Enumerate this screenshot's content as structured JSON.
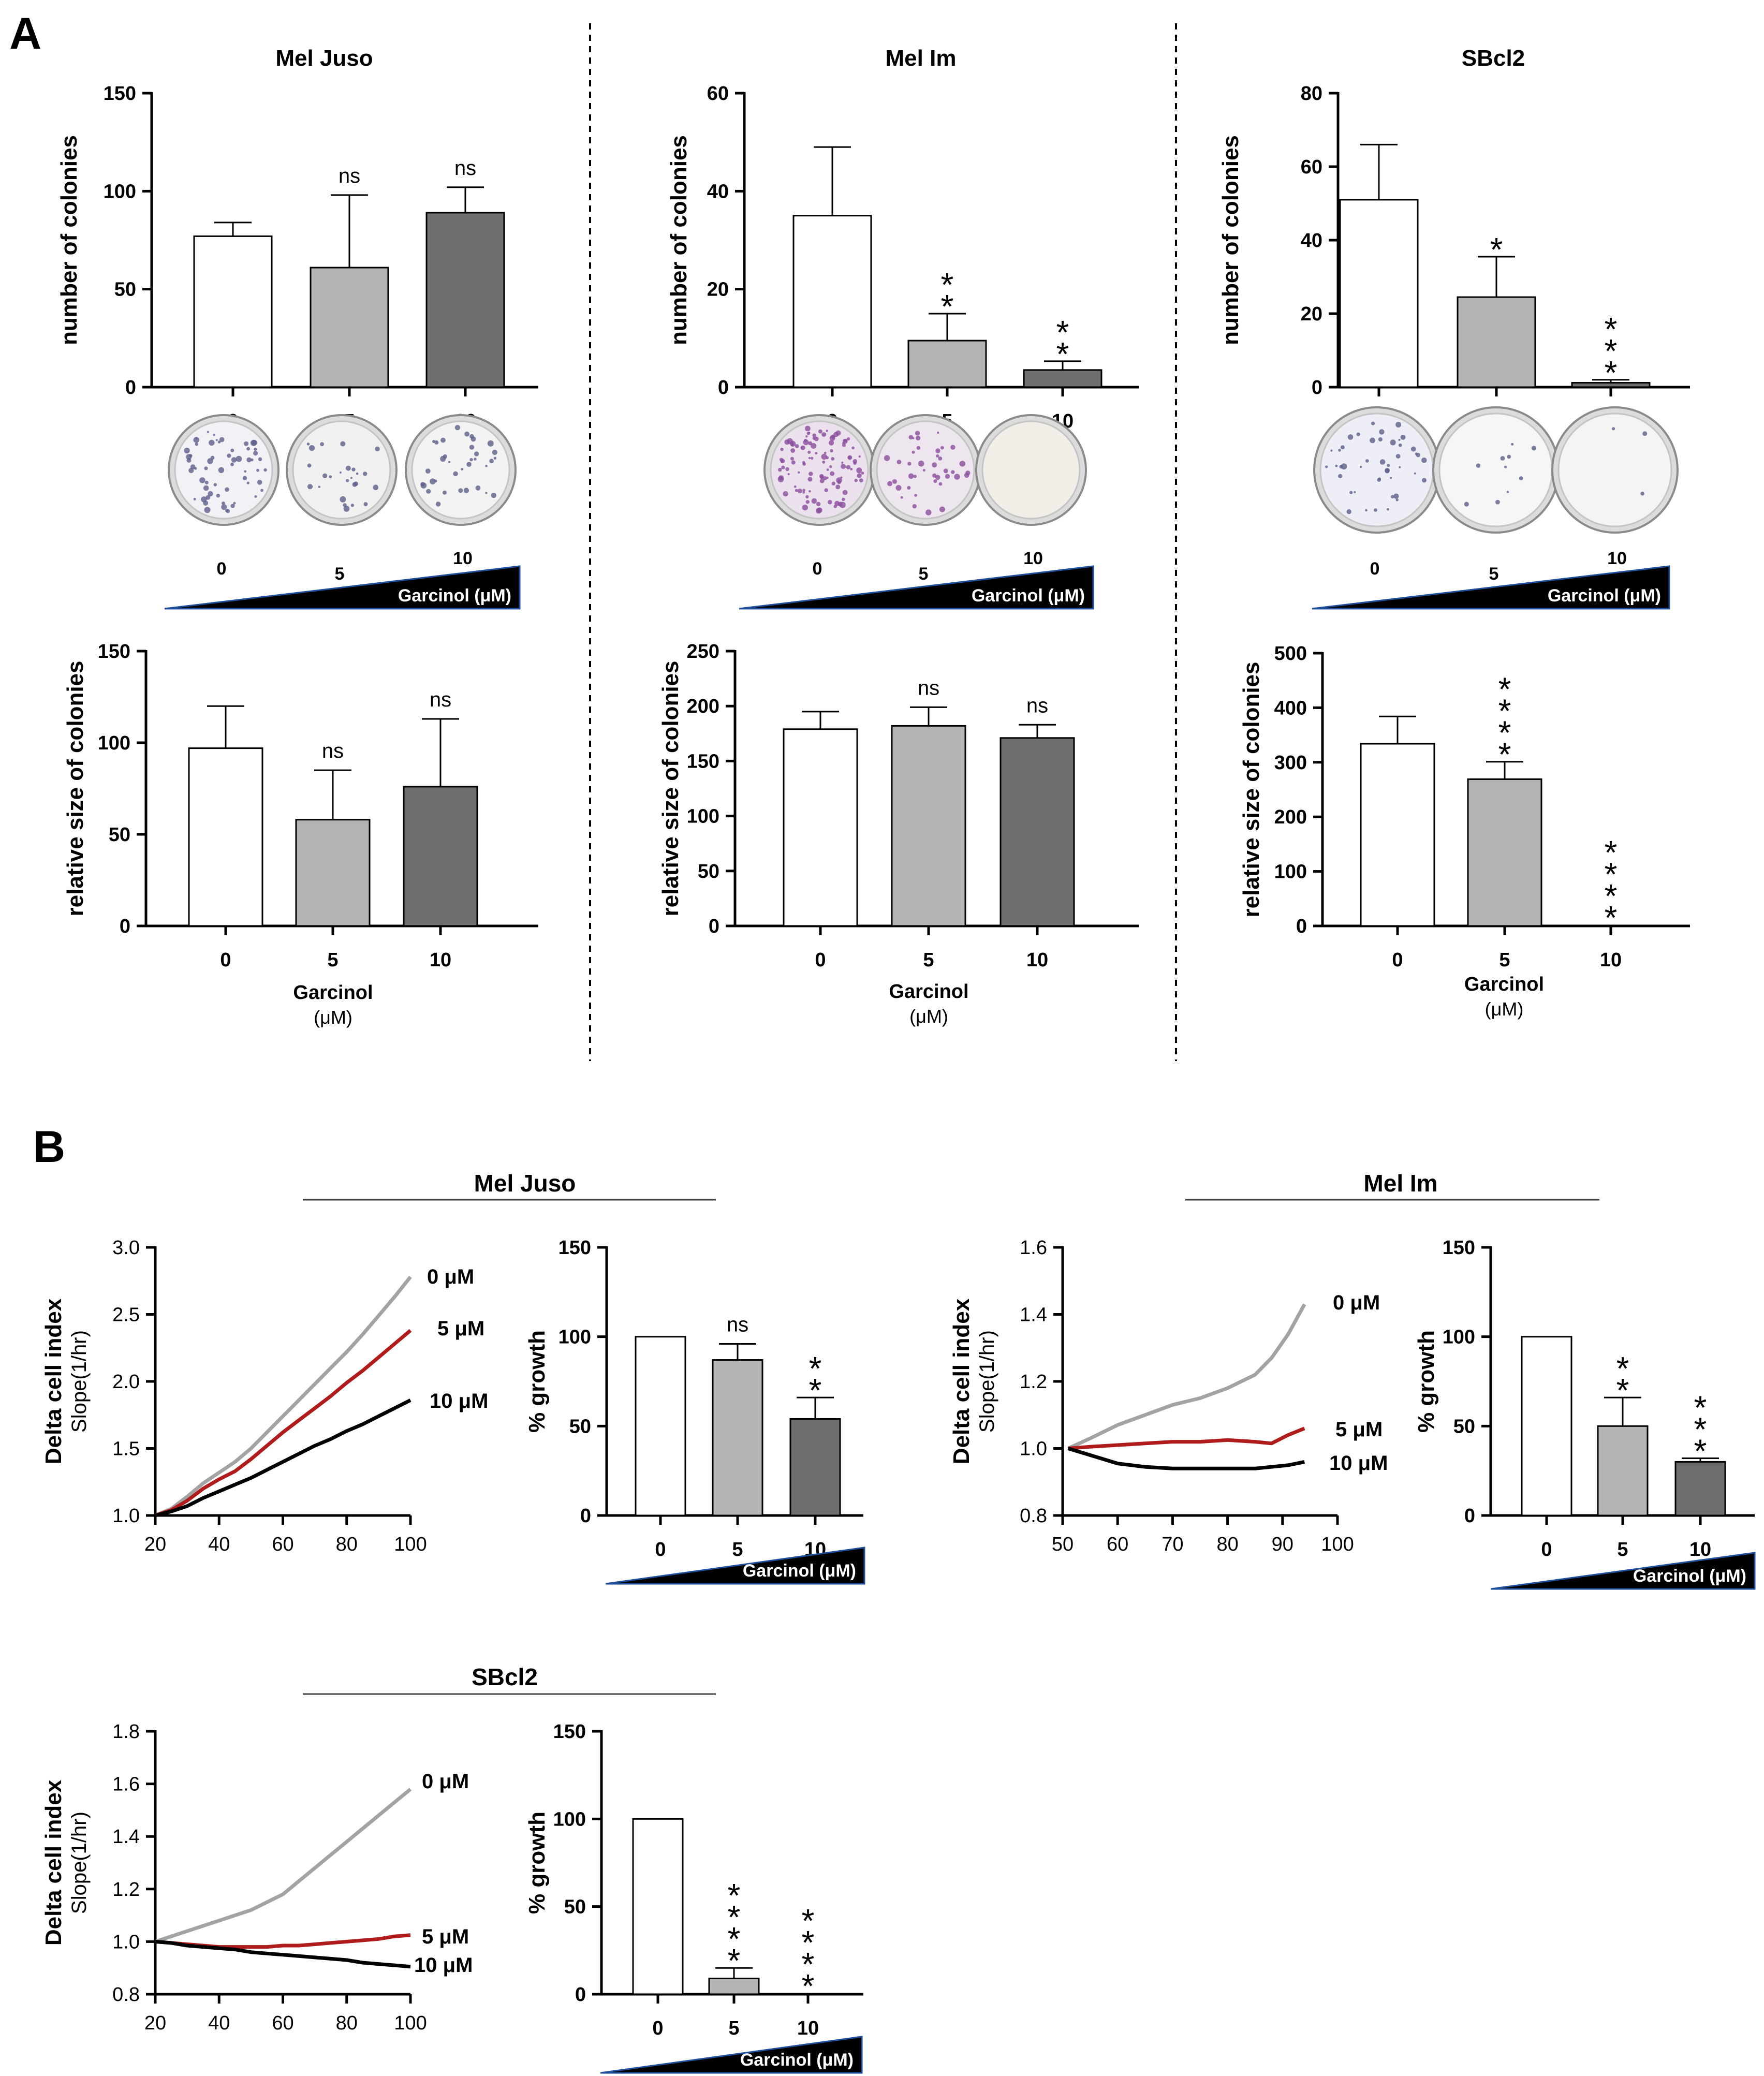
{
  "panel_labels": {
    "A": "A",
    "B": "B"
  },
  "colors": {
    "white": "#ffffff",
    "light": "#b4b4b4",
    "dark": "#6e6e6e",
    "gray_line": "#a3a3a3",
    "red_line": "#b01c1c",
    "black_line": "#000000",
    "wedge": "#000000",
    "wedge_edge": "#1f4e9a"
  },
  "dishes_A": [
    {
      "name": "mel-juso-dishes",
      "labels": [
        "0",
        "5",
        "10"
      ],
      "wedge_label": "Garcinol (μM)",
      "colony_density": [
        60,
        25,
        35
      ],
      "tint": [
        "#f2f1f6",
        "#f1f1f1",
        "#f3f3f3"
      ]
    },
    {
      "name": "mel-im-dishes",
      "labels": [
        "0",
        "5",
        "10"
      ],
      "wedge_label": "Garcinol (μM)",
      "colony_density": [
        110,
        40,
        0
      ],
      "tint": [
        "#ece2ee",
        "#eee6ee",
        "#f3efe8"
      ]
    },
    {
      "name": "sbcl2-dishes",
      "labels": [
        "0",
        "5",
        "10"
      ],
      "wedge_label": "Garcinol (μM)",
      "colony_density": [
        45,
        10,
        3
      ],
      "tint": [
        "#eeeef6",
        "#f6f6f6",
        "#f4f4f4"
      ]
    }
  ],
  "wedges_B": [
    {
      "name": "mel-juso-growth-wedge",
      "label": "Garcinol (μM)"
    },
    {
      "name": "mel-im-growth-wedge",
      "label": "Garcinol (μM)"
    },
    {
      "name": "sbcl2-growth-wedge",
      "label": "Garcinol (μM)"
    }
  ],
  "chart_data": [
    {
      "id": "a1",
      "type": "bar",
      "title": "Mel Juso",
      "ylabel": "number of colonies",
      "categories": [
        "0",
        "5",
        "10"
      ],
      "values": [
        77,
        61,
        89
      ],
      "errors": [
        7,
        37,
        13
      ],
      "significance": [
        "",
        "ns",
        "ns"
      ],
      "ylim": [
        0,
        150
      ],
      "yticks": [
        0,
        50,
        100,
        150
      ]
    },
    {
      "id": "a2",
      "type": "bar",
      "title": "Mel Im",
      "ylabel": "number of colonies",
      "categories": [
        "0",
        "5",
        "10"
      ],
      "values": [
        35,
        9.5,
        3.5
      ],
      "errors": [
        14,
        5.5,
        1.8
      ],
      "significance": [
        "",
        "**",
        "**"
      ],
      "ylim": [
        0,
        60
      ],
      "yticks": [
        0,
        20,
        40,
        60
      ]
    },
    {
      "id": "a3",
      "type": "bar",
      "title": "SBcl2",
      "ylabel": "number of colonies",
      "categories": [
        "0",
        "5",
        "10"
      ],
      "values": [
        51,
        24.5,
        1.2
      ],
      "errors": [
        15,
        11,
        0.8
      ],
      "significance": [
        "",
        "*",
        "***"
      ],
      "ylim": [
        0,
        80
      ],
      "yticks": [
        0,
        20,
        40,
        60,
        80
      ]
    },
    {
      "id": "a4",
      "type": "bar",
      "title": "",
      "ylabel": "relative size of colonies",
      "xlabel": "Garcinol",
      "xlabel_unit": "(μM)",
      "categories": [
        "0",
        "5",
        "10"
      ],
      "values": [
        97,
        58,
        76
      ],
      "errors": [
        23,
        27,
        37
      ],
      "significance": [
        "",
        "ns",
        "ns"
      ],
      "ylim": [
        0,
        150
      ],
      "yticks": [
        0,
        50,
        100,
        150
      ]
    },
    {
      "id": "a5",
      "type": "bar",
      "title": "",
      "ylabel": "relative size of colonies",
      "xlabel": "Garcinol",
      "xlabel_unit": "(μM)",
      "categories": [
        "0",
        "5",
        "10"
      ],
      "values": [
        179,
        182,
        171
      ],
      "errors": [
        16,
        17,
        12
      ],
      "significance": [
        "",
        "ns",
        "ns"
      ],
      "ylim": [
        0,
        250
      ],
      "yticks": [
        0,
        50,
        100,
        150,
        200,
        250
      ]
    },
    {
      "id": "a6",
      "type": "bar",
      "title": "",
      "ylabel": "relative size of colonies",
      "xlabel": "Garcinol",
      "xlabel_unit": "(μM)",
      "categories": [
        "0",
        "5",
        "10"
      ],
      "values": [
        334,
        269,
        0
      ],
      "errors": [
        50,
        32,
        0
      ],
      "significance": [
        "",
        "****",
        "****"
      ],
      "ylim": [
        0,
        500
      ],
      "yticks": [
        0,
        100,
        200,
        300,
        400,
        500
      ]
    },
    {
      "id": "b1",
      "type": "line",
      "title": "Mel Juso",
      "ylabel": "Delta cell index",
      "ylabel2": "Slope(1/hr)",
      "xlim": [
        20,
        100
      ],
      "ylim": [
        1.0,
        3.0
      ],
      "xticks": [
        20,
        40,
        60,
        80,
        100
      ],
      "yticks": [
        1.0,
        1.5,
        2.0,
        2.5,
        3.0
      ],
      "ytick_labels": [
        "1.0",
        "1.5",
        "2.0",
        "2.5",
        "3.0"
      ],
      "series": [
        {
          "name": "0 μM",
          "color": "#a3a3a3",
          "x": [
            20,
            25,
            30,
            35,
            40,
            45,
            50,
            55,
            60,
            65,
            70,
            75,
            80,
            85,
            90,
            95,
            100
          ],
          "y": [
            1.0,
            1.05,
            1.14,
            1.24,
            1.32,
            1.4,
            1.5,
            1.62,
            1.74,
            1.86,
            1.98,
            2.1,
            2.22,
            2.35,
            2.49,
            2.63,
            2.78
          ]
        },
        {
          "name": "5 μM",
          "color": "#b01c1c",
          "x": [
            20,
            25,
            30,
            35,
            40,
            45,
            50,
            55,
            60,
            65,
            70,
            75,
            80,
            85,
            90,
            95,
            100
          ],
          "y": [
            1.0,
            1.04,
            1.11,
            1.2,
            1.27,
            1.33,
            1.42,
            1.52,
            1.62,
            1.71,
            1.8,
            1.89,
            1.99,
            2.08,
            2.18,
            2.28,
            2.38
          ]
        },
        {
          "name": "10 μM",
          "color": "#000000",
          "x": [
            20,
            25,
            30,
            35,
            40,
            45,
            50,
            55,
            60,
            65,
            70,
            75,
            80,
            85,
            90,
            95,
            100
          ],
          "y": [
            1.0,
            1.03,
            1.07,
            1.13,
            1.18,
            1.23,
            1.28,
            1.34,
            1.4,
            1.46,
            1.52,
            1.57,
            1.63,
            1.68,
            1.74,
            1.8,
            1.86
          ]
        }
      ]
    },
    {
      "id": "b2",
      "type": "bar",
      "title": "",
      "ylabel": "% growth",
      "categories": [
        "0",
        "5",
        "10"
      ],
      "values": [
        100,
        87,
        54
      ],
      "errors": [
        0,
        9,
        12
      ],
      "significance": [
        "",
        "ns",
        "**"
      ],
      "ylim": [
        0,
        150
      ],
      "yticks": [
        0,
        50,
        100,
        150
      ]
    },
    {
      "id": "b3",
      "type": "line",
      "title": "Mel Im",
      "ylabel": "Delta cell index",
      "ylabel2": "Slope(1/hr)",
      "xlim": [
        50,
        100
      ],
      "ylim": [
        0.8,
        1.6
      ],
      "xticks": [
        50,
        60,
        70,
        80,
        90,
        100
      ],
      "yticks": [
        0.8,
        1.0,
        1.2,
        1.4,
        1.6
      ],
      "ytick_labels": [
        "0.8",
        "1.0",
        "1.2",
        "1.4",
        "1.6"
      ],
      "series": [
        {
          "name": "0 μM",
          "color": "#a3a3a3",
          "x": [
            51,
            55,
            60,
            65,
            70,
            75,
            80,
            85,
            88,
            91,
            94
          ],
          "y": [
            1.0,
            1.03,
            1.07,
            1.1,
            1.13,
            1.15,
            1.18,
            1.22,
            1.27,
            1.34,
            1.43
          ]
        },
        {
          "name": "5 μM",
          "color": "#b01c1c",
          "x": [
            51,
            55,
            60,
            65,
            70,
            75,
            80,
            85,
            88,
            91,
            94
          ],
          "y": [
            1.0,
            1.005,
            1.01,
            1.015,
            1.02,
            1.02,
            1.025,
            1.02,
            1.015,
            1.04,
            1.06
          ]
        },
        {
          "name": "10 μM",
          "color": "#000000",
          "x": [
            51,
            55,
            60,
            65,
            70,
            75,
            80,
            85,
            88,
            91,
            94
          ],
          "y": [
            1.0,
            0.98,
            0.955,
            0.945,
            0.94,
            0.94,
            0.94,
            0.94,
            0.945,
            0.95,
            0.96
          ]
        }
      ]
    },
    {
      "id": "b4",
      "type": "bar",
      "title": "",
      "ylabel": "% growth",
      "categories": [
        "0",
        "5",
        "10"
      ],
      "values": [
        100,
        50,
        30
      ],
      "errors": [
        0,
        16,
        2
      ],
      "significance": [
        "",
        "**",
        "***"
      ],
      "ylim": [
        0,
        150
      ],
      "yticks": [
        0,
        50,
        100,
        150
      ]
    },
    {
      "id": "b5",
      "type": "line",
      "title": "SBcl2",
      "ylabel": "Delta cell index",
      "ylabel2": "Slope(1/hr)",
      "xlim": [
        20,
        100
      ],
      "ylim": [
        0.8,
        1.8
      ],
      "xticks": [
        20,
        40,
        60,
        80,
        100
      ],
      "yticks": [
        0.8,
        1.0,
        1.2,
        1.4,
        1.6,
        1.8
      ],
      "ytick_labels": [
        "0.8",
        "1.0",
        "1.2",
        "1.4",
        "1.6",
        "1.8"
      ],
      "series": [
        {
          "name": "0 μM",
          "color": "#a3a3a3",
          "x": [
            20,
            25,
            30,
            35,
            40,
            45,
            50,
            55,
            60,
            65,
            70,
            75,
            80,
            85,
            90,
            95,
            100
          ],
          "y": [
            1.0,
            1.02,
            1.04,
            1.06,
            1.08,
            1.1,
            1.12,
            1.15,
            1.18,
            1.23,
            1.28,
            1.33,
            1.38,
            1.43,
            1.48,
            1.53,
            1.58
          ]
        },
        {
          "name": "5 μM",
          "color": "#b01c1c",
          "x": [
            20,
            25,
            30,
            35,
            40,
            45,
            50,
            55,
            60,
            65,
            70,
            75,
            80,
            85,
            90,
            95,
            100
          ],
          "y": [
            1.0,
            0.995,
            0.99,
            0.985,
            0.98,
            0.98,
            0.98,
            0.98,
            0.985,
            0.985,
            0.99,
            0.995,
            1.0,
            1.005,
            1.01,
            1.02,
            1.025
          ]
        },
        {
          "name": "10 μM",
          "color": "#000000",
          "x": [
            20,
            25,
            30,
            35,
            40,
            45,
            50,
            55,
            60,
            65,
            70,
            75,
            80,
            85,
            90,
            95,
            100
          ],
          "y": [
            1.0,
            0.995,
            0.985,
            0.98,
            0.975,
            0.97,
            0.96,
            0.955,
            0.95,
            0.945,
            0.94,
            0.935,
            0.93,
            0.92,
            0.915,
            0.91,
            0.905
          ]
        }
      ]
    },
    {
      "id": "b6",
      "type": "bar",
      "title": "",
      "ylabel": "% growth",
      "categories": [
        "0",
        "5",
        "10"
      ],
      "values": [
        100,
        9,
        0
      ],
      "errors": [
        0,
        6,
        0
      ],
      "significance": [
        "",
        "****",
        "****"
      ],
      "ylim": [
        0,
        150
      ],
      "yticks": [
        0,
        50,
        100,
        150
      ]
    }
  ]
}
